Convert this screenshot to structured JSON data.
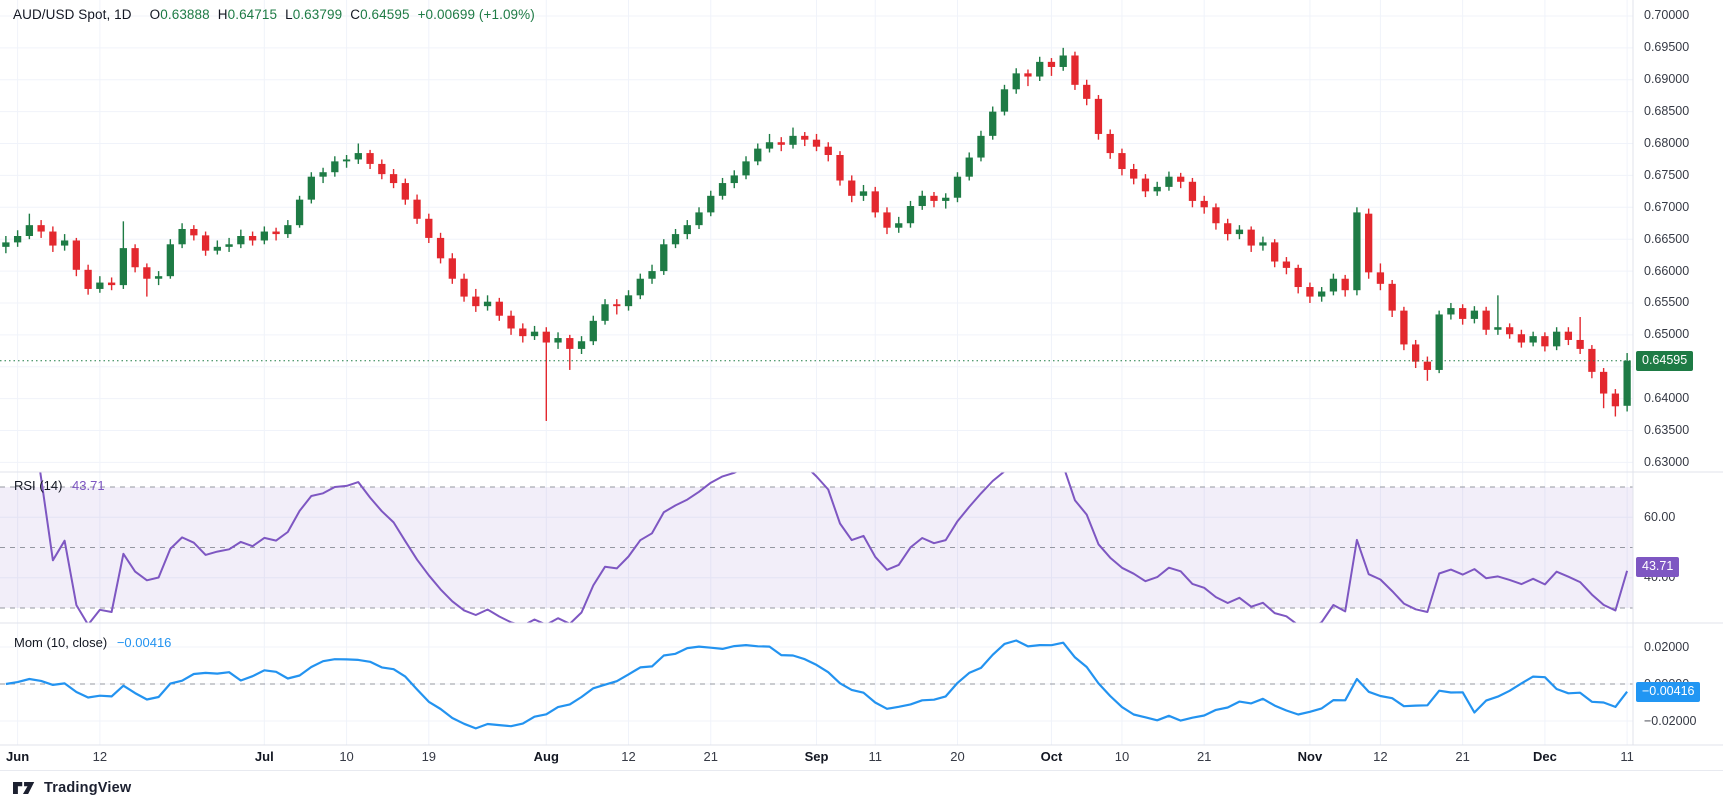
{
  "header": {
    "symbol": "AUD/USD Spot, 1D",
    "ohlc": [
      {
        "k": "O",
        "v": "0.63888"
      },
      {
        "k": "H",
        "v": "0.64715"
      },
      {
        "k": "L",
        "v": "0.63799"
      },
      {
        "k": "C",
        "v": "0.64595"
      }
    ],
    "change": "+0.00699 (+1.09%)"
  },
  "rsi_legend": {
    "label": "RSI (14)",
    "value": "43.71"
  },
  "mom_legend": {
    "label": "Mom (10, close)",
    "value": "−0.00416"
  },
  "badges": {
    "price": "0.64595",
    "rsi": "43.71",
    "mom": "−0.00416"
  },
  "footer": {
    "brand": "TradingView"
  },
  "colors": {
    "up": "#1e7b45",
    "down": "#e3282e",
    "grid": "#f0f3fa",
    "separator": "#e0e3eb",
    "dashed": "#9598a1",
    "rsi_line": "#7e57c2",
    "rsi_band": "rgba(126,87,194,0.10)",
    "rsi_badge": "#7e57c2",
    "mom_line": "#2393f0",
    "mom_badge": "#2196f3",
    "price_badge": "#1e7b45",
    "price_dotted": "#1e7b45"
  },
  "chart_data": {
    "type": "candlestick",
    "title": "AUD/USD Spot, 1D",
    "timeframe": "1D",
    "ohlc_display": {
      "open": 0.63888,
      "high": 0.64715,
      "low": 0.63799,
      "close": 0.64595,
      "change": 0.00699,
      "change_pct": 1.09
    },
    "current_price": 0.64595,
    "y_range": [
      0.6285,
      0.7025
    ],
    "y_ticks": [
      {
        "label": "0.70000",
        "v": 0.7
      },
      {
        "label": "0.69500",
        "v": 0.695
      },
      {
        "label": "0.69000",
        "v": 0.69
      },
      {
        "label": "0.68500",
        "v": 0.685
      },
      {
        "label": "0.68000",
        "v": 0.68
      },
      {
        "label": "0.67500",
        "v": 0.675
      },
      {
        "label": "0.67000",
        "v": 0.67
      },
      {
        "label": "0.66500",
        "v": 0.665
      },
      {
        "label": "0.66000",
        "v": 0.66
      },
      {
        "label": "0.65500",
        "v": 0.655
      },
      {
        "label": "0.65000",
        "v": 0.65
      },
      {
        "label": "0.64500",
        "v": 0.645
      },
      {
        "label": "0.64000",
        "v": 0.64
      },
      {
        "label": "0.63500",
        "v": 0.635
      },
      {
        "label": "0.63000",
        "v": 0.63
      }
    ],
    "x_labels": [
      {
        "t": "Jun",
        "i": 1,
        "b": true
      },
      {
        "t": "12",
        "i": 8
      },
      {
        "t": "Jul",
        "i": 22,
        "b": true
      },
      {
        "t": "10",
        "i": 29
      },
      {
        "t": "19",
        "i": 36
      },
      {
        "t": "Aug",
        "i": 46,
        "b": true
      },
      {
        "t": "12",
        "i": 53
      },
      {
        "t": "21",
        "i": 60
      },
      {
        "t": "Sep",
        "i": 69,
        "b": true
      },
      {
        "t": "11",
        "i": 74
      },
      {
        "t": "20",
        "i": 81
      },
      {
        "t": "Oct",
        "i": 89,
        "b": true
      },
      {
        "t": "10",
        "i": 95
      },
      {
        "t": "21",
        "i": 102
      },
      {
        "t": "Nov",
        "i": 111,
        "b": true
      },
      {
        "t": "12",
        "i": 117
      },
      {
        "t": "21",
        "i": 124
      },
      {
        "t": "Dec",
        "i": 131,
        "b": true
      },
      {
        "t": "11",
        "i": 138
      }
    ],
    "indicators": [
      {
        "name": "RSI",
        "period": 14,
        "value": 43.71,
        "levels": [
          70,
          50,
          30
        ],
        "axis_ticks": [
          {
            "label": "60.00",
            "v": 60
          },
          {
            "label": "40.00",
            "v": 40
          }
        ]
      },
      {
        "name": "Momentum",
        "period": 10,
        "source": "close",
        "value": -0.00416,
        "axis_ticks": [
          {
            "label": "0.02000",
            "v": 0.02
          },
          {
            "label": "0.00000",
            "v": 0.0
          },
          {
            "label": "−0.02000",
            "v": -0.02
          }
        ]
      }
    ],
    "candles": [
      [
        0.6638,
        0.6655,
        0.6628,
        0.6645
      ],
      [
        0.6645,
        0.6664,
        0.6638,
        0.6655
      ],
      [
        0.6655,
        0.669,
        0.665,
        0.6672
      ],
      [
        0.6672,
        0.668,
        0.6652,
        0.6662
      ],
      [
        0.6662,
        0.667,
        0.663,
        0.664
      ],
      [
        0.664,
        0.6658,
        0.6632,
        0.6648
      ],
      [
        0.6648,
        0.6652,
        0.6592,
        0.6602
      ],
      [
        0.6602,
        0.661,
        0.6563,
        0.6572
      ],
      [
        0.6572,
        0.6592,
        0.6566,
        0.6582
      ],
      [
        0.6582,
        0.659,
        0.657,
        0.6578
      ],
      [
        0.6578,
        0.6678,
        0.6572,
        0.6636
      ],
      [
        0.6636,
        0.6642,
        0.6598,
        0.6606
      ],
      [
        0.6606,
        0.6612,
        0.656,
        0.6588
      ],
      [
        0.6588,
        0.66,
        0.6578,
        0.6592
      ],
      [
        0.6592,
        0.665,
        0.6588,
        0.6642
      ],
      [
        0.6642,
        0.6675,
        0.6636,
        0.6666
      ],
      [
        0.6666,
        0.6672,
        0.6648,
        0.6656
      ],
      [
        0.6656,
        0.6662,
        0.6624,
        0.6632
      ],
      [
        0.6632,
        0.6648,
        0.6626,
        0.6638
      ],
      [
        0.6638,
        0.6652,
        0.663,
        0.6642
      ],
      [
        0.6642,
        0.6665,
        0.6636,
        0.6655
      ],
      [
        0.6655,
        0.6662,
        0.664,
        0.6648
      ],
      [
        0.6648,
        0.667,
        0.6642,
        0.6662
      ],
      [
        0.6662,
        0.6668,
        0.6648,
        0.6658
      ],
      [
        0.6658,
        0.668,
        0.6652,
        0.6672
      ],
      [
        0.6672,
        0.6718,
        0.6668,
        0.6712
      ],
      [
        0.6712,
        0.6755,
        0.6706,
        0.6748
      ],
      [
        0.6748,
        0.6762,
        0.6738,
        0.6755
      ],
      [
        0.6755,
        0.678,
        0.6748,
        0.6772
      ],
      [
        0.6772,
        0.6782,
        0.6762,
        0.6775
      ],
      [
        0.6775,
        0.68,
        0.6768,
        0.6785
      ],
      [
        0.6785,
        0.679,
        0.676,
        0.6768
      ],
      [
        0.6768,
        0.6775,
        0.6744,
        0.6752
      ],
      [
        0.6752,
        0.676,
        0.673,
        0.6738
      ],
      [
        0.6738,
        0.6745,
        0.6704,
        0.6712
      ],
      [
        0.6712,
        0.672,
        0.6674,
        0.6682
      ],
      [
        0.6682,
        0.669,
        0.6644,
        0.6652
      ],
      [
        0.6652,
        0.666,
        0.6612,
        0.662
      ],
      [
        0.662,
        0.6628,
        0.658,
        0.6588
      ],
      [
        0.6588,
        0.6596,
        0.6552,
        0.656
      ],
      [
        0.656,
        0.6572,
        0.6536,
        0.6545
      ],
      [
        0.6545,
        0.6562,
        0.6538,
        0.6552
      ],
      [
        0.6552,
        0.6558,
        0.6522,
        0.653
      ],
      [
        0.653,
        0.6538,
        0.65,
        0.651
      ],
      [
        0.651,
        0.6518,
        0.6488,
        0.6498
      ],
      [
        0.6498,
        0.6514,
        0.6492,
        0.6505
      ],
      [
        0.6505,
        0.6512,
        0.6365,
        0.6488
      ],
      [
        0.6488,
        0.6504,
        0.6478,
        0.6495
      ],
      [
        0.6495,
        0.65,
        0.6445,
        0.6478
      ],
      [
        0.6478,
        0.6498,
        0.647,
        0.649
      ],
      [
        0.649,
        0.653,
        0.6484,
        0.6522
      ],
      [
        0.6522,
        0.6556,
        0.6516,
        0.6548
      ],
      [
        0.6548,
        0.6556,
        0.6532,
        0.6545
      ],
      [
        0.6545,
        0.657,
        0.6538,
        0.6562
      ],
      [
        0.6562,
        0.6596,
        0.6556,
        0.6588
      ],
      [
        0.6588,
        0.661,
        0.658,
        0.66
      ],
      [
        0.66,
        0.665,
        0.6594,
        0.6642
      ],
      [
        0.6642,
        0.6666,
        0.6636,
        0.6658
      ],
      [
        0.6658,
        0.668,
        0.665,
        0.6672
      ],
      [
        0.6672,
        0.67,
        0.6666,
        0.6692
      ],
      [
        0.6692,
        0.6726,
        0.6686,
        0.6718
      ],
      [
        0.6718,
        0.6746,
        0.6712,
        0.6738
      ],
      [
        0.6738,
        0.6758,
        0.673,
        0.675
      ],
      [
        0.675,
        0.678,
        0.6744,
        0.6772
      ],
      [
        0.6772,
        0.68,
        0.6766,
        0.6792
      ],
      [
        0.6792,
        0.6815,
        0.6786,
        0.6802
      ],
      [
        0.6802,
        0.681,
        0.6788,
        0.6798
      ],
      [
        0.6798,
        0.6825,
        0.6792,
        0.6812
      ],
      [
        0.6812,
        0.6818,
        0.6796,
        0.6806
      ],
      [
        0.6806,
        0.6815,
        0.6788,
        0.6795
      ],
      [
        0.6795,
        0.6802,
        0.6772,
        0.6782
      ],
      [
        0.6782,
        0.6788,
        0.6734,
        0.6742
      ],
      [
        0.6742,
        0.675,
        0.6708,
        0.6718
      ],
      [
        0.6718,
        0.6735,
        0.671,
        0.6725
      ],
      [
        0.6725,
        0.6732,
        0.6684,
        0.6692
      ],
      [
        0.6692,
        0.67,
        0.6658,
        0.6668
      ],
      [
        0.6668,
        0.6685,
        0.666,
        0.6675
      ],
      [
        0.6675,
        0.671,
        0.6668,
        0.6702
      ],
      [
        0.6702,
        0.6726,
        0.6696,
        0.6718
      ],
      [
        0.6718,
        0.6724,
        0.67,
        0.671
      ],
      [
        0.671,
        0.6722,
        0.6698,
        0.6715
      ],
      [
        0.6715,
        0.6755,
        0.6708,
        0.6748
      ],
      [
        0.6748,
        0.6786,
        0.6742,
        0.6778
      ],
      [
        0.6778,
        0.682,
        0.6772,
        0.6812
      ],
      [
        0.6812,
        0.6858,
        0.6806,
        0.685
      ],
      [
        0.685,
        0.6892,
        0.6844,
        0.6885
      ],
      [
        0.6885,
        0.6918,
        0.6878,
        0.691
      ],
      [
        0.691,
        0.6916,
        0.689,
        0.6905
      ],
      [
        0.6905,
        0.6936,
        0.6898,
        0.6928
      ],
      [
        0.6928,
        0.6934,
        0.6906,
        0.692
      ],
      [
        0.692,
        0.695,
        0.6914,
        0.6938
      ],
      [
        0.6938,
        0.6944,
        0.6884,
        0.6892
      ],
      [
        0.6892,
        0.69,
        0.686,
        0.687
      ],
      [
        0.687,
        0.6876,
        0.6806,
        0.6815
      ],
      [
        0.6815,
        0.6822,
        0.6776,
        0.6785
      ],
      [
        0.6785,
        0.6792,
        0.675,
        0.676
      ],
      [
        0.676,
        0.6768,
        0.6736,
        0.6745
      ],
      [
        0.6745,
        0.6752,
        0.6716,
        0.6725
      ],
      [
        0.6725,
        0.674,
        0.6718,
        0.6732
      ],
      [
        0.6732,
        0.6756,
        0.6726,
        0.6748
      ],
      [
        0.6748,
        0.6754,
        0.673,
        0.674
      ],
      [
        0.674,
        0.6746,
        0.67,
        0.671
      ],
      [
        0.671,
        0.6718,
        0.669,
        0.67
      ],
      [
        0.67,
        0.6706,
        0.6665,
        0.6675
      ],
      [
        0.6675,
        0.6682,
        0.6648,
        0.6658
      ],
      [
        0.6658,
        0.6672,
        0.665,
        0.6665
      ],
      [
        0.6665,
        0.667,
        0.663,
        0.664
      ],
      [
        0.664,
        0.6654,
        0.6632,
        0.6645
      ],
      [
        0.6645,
        0.665,
        0.6606,
        0.6615
      ],
      [
        0.6615,
        0.6622,
        0.6595,
        0.6605
      ],
      [
        0.6605,
        0.661,
        0.6565,
        0.6575
      ],
      [
        0.6575,
        0.6582,
        0.655,
        0.656
      ],
      [
        0.656,
        0.6575,
        0.6552,
        0.6568
      ],
      [
        0.6568,
        0.6596,
        0.6562,
        0.6588
      ],
      [
        0.6588,
        0.6594,
        0.656,
        0.657
      ],
      [
        0.657,
        0.67,
        0.6562,
        0.6692
      ],
      [
        0.669,
        0.6698,
        0.6588,
        0.6598
      ],
      [
        0.6598,
        0.6612,
        0.657,
        0.658
      ],
      [
        0.658,
        0.6586,
        0.6528,
        0.6538
      ],
      [
        0.6538,
        0.6544,
        0.6476,
        0.6485
      ],
      [
        0.6485,
        0.6492,
        0.6448,
        0.6458
      ],
      [
        0.6458,
        0.6466,
        0.6428,
        0.6445
      ],
      [
        0.6445,
        0.6538,
        0.644,
        0.6532
      ],
      [
        0.6532,
        0.655,
        0.6524,
        0.6542
      ],
      [
        0.6542,
        0.6548,
        0.6516,
        0.6525
      ],
      [
        0.6525,
        0.6545,
        0.6518,
        0.6538
      ],
      [
        0.6538,
        0.6544,
        0.65,
        0.6508
      ],
      [
        0.6508,
        0.6562,
        0.65,
        0.6512
      ],
      [
        0.6512,
        0.6518,
        0.6494,
        0.6501
      ],
      [
        0.6501,
        0.6508,
        0.648,
        0.6488
      ],
      [
        0.6488,
        0.6505,
        0.6482,
        0.6498
      ],
      [
        0.6498,
        0.6504,
        0.6474,
        0.6482
      ],
      [
        0.6482,
        0.6512,
        0.6476,
        0.6505
      ],
      [
        0.6505,
        0.6512,
        0.6484,
        0.6492
      ],
      [
        0.6492,
        0.6528,
        0.647,
        0.6478
      ],
      [
        0.6478,
        0.6484,
        0.6432,
        0.6442
      ],
      [
        0.6442,
        0.6448,
        0.6385,
        0.6408
      ],
      [
        0.6408,
        0.6415,
        0.6372,
        0.6388
      ],
      [
        0.63888,
        0.64715,
        0.63799,
        0.64595
      ]
    ]
  }
}
